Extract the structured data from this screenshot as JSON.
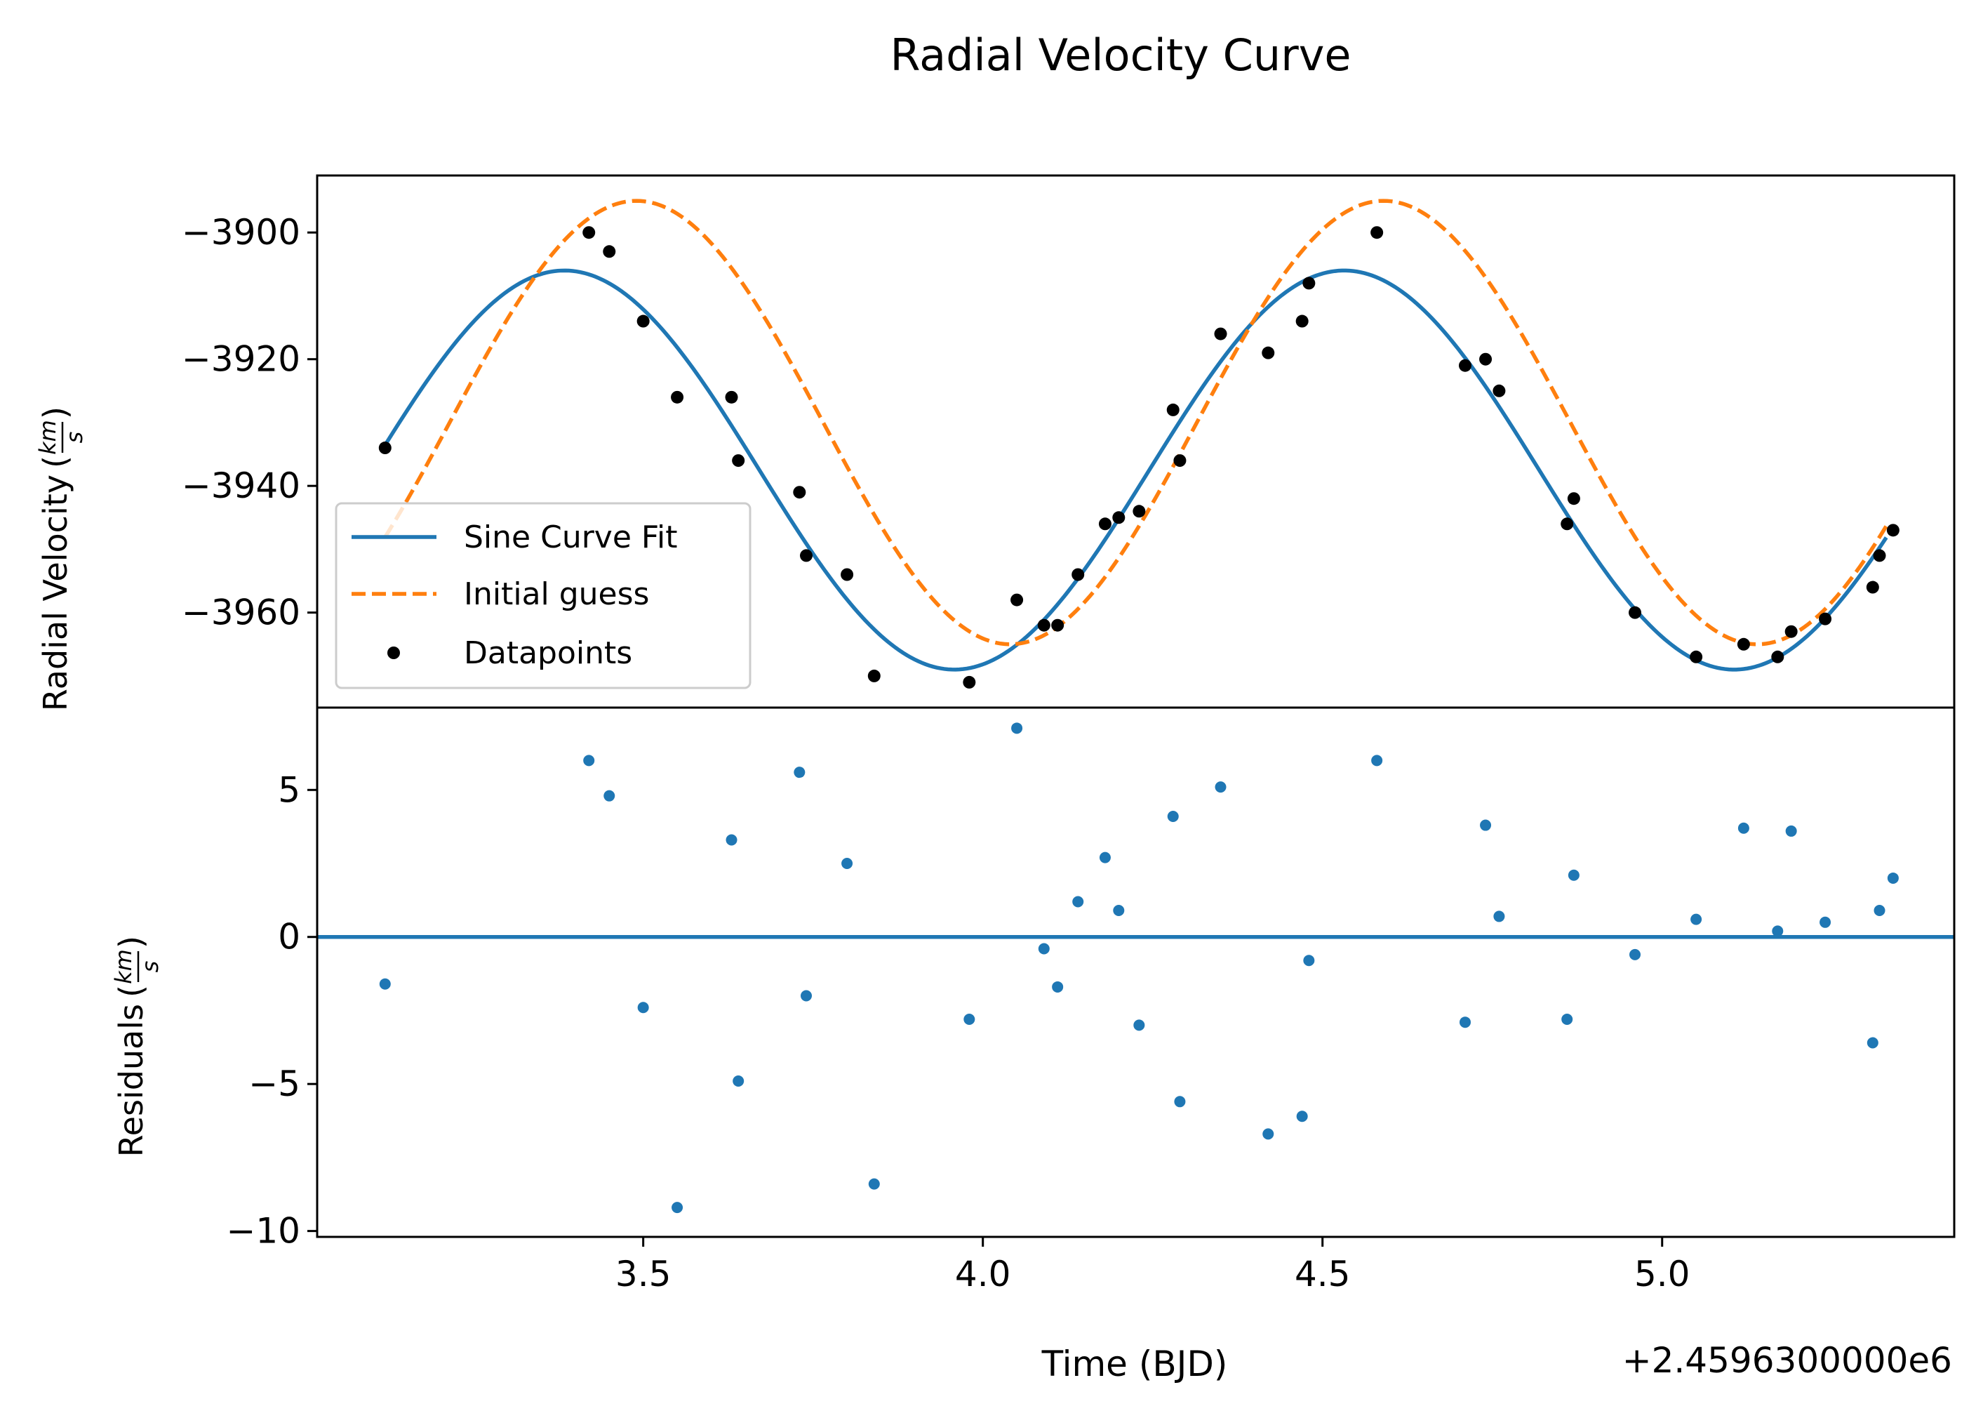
{
  "chart_data": {
    "title": "Radial Velocity Curve",
    "xlabel": "Time (BJD)",
    "x_offset_label": "+2.4596300000e6",
    "x_offset": 2459630.0,
    "xlim": [
      3.02,
      5.43
    ],
    "xticks": [
      3.5,
      4.0,
      4.5,
      5.0
    ],
    "xtick_labels": [
      "3.5",
      "4.0",
      "4.5",
      "5.0"
    ],
    "panels": [
      {
        "type": "line+scatter",
        "ylabel": "Radial Velocity",
        "yunit": {
          "num": "km",
          "den": "s"
        },
        "ylim": [
          -3975,
          -3891
        ],
        "yticks": [
          -3900,
          -3920,
          -3940,
          -3960
        ],
        "ytick_labels": [
          "−3900",
          "−3920",
          "−3940",
          "−3960"
        ],
        "legend": {
          "position": "lower left",
          "entries": [
            {
              "label": "Sine Curve Fit",
              "kind": "line",
              "color": "#1f77b4",
              "dash": "solid"
            },
            {
              "label": "Initial guess",
              "kind": "line",
              "color": "#ff7f0e",
              "dash": "dashed"
            },
            {
              "label": "Datapoints",
              "kind": "marker",
              "color": "#000000"
            }
          ]
        },
        "series": [
          {
            "name": "Sine Curve Fit",
            "kind": "line",
            "color": "#1f77b4",
            "dash": "solid",
            "model": {
              "mean": -3937.5,
              "amplitude": 31.5,
              "period": 1.148,
              "peak_time": 3.384
            },
            "x_range": [
              3.12,
              5.33
            ]
          },
          {
            "name": "Initial guess",
            "kind": "line",
            "color": "#ff7f0e",
            "dash": "dashed",
            "model": {
              "mean": -3930,
              "amplitude": 35,
              "period": 1.1,
              "peak_time": 3.49
            },
            "x_range": [
              3.12,
              5.33
            ]
          },
          {
            "name": "Datapoints",
            "kind": "scatter",
            "color": "#000000",
            "points": [
              [
                3.12,
                -3934
              ],
              [
                3.42,
                -3900
              ],
              [
                3.45,
                -3903
              ],
              [
                3.5,
                -3914
              ],
              [
                3.55,
                -3926
              ],
              [
                3.63,
                -3926
              ],
              [
                3.64,
                -3936
              ],
              [
                3.73,
                -3941
              ],
              [
                3.74,
                -3951
              ],
              [
                3.8,
                -3954
              ],
              [
                3.84,
                -3970
              ],
              [
                3.98,
                -3971
              ],
              [
                4.05,
                -3958
              ],
              [
                4.09,
                -3962
              ],
              [
                4.11,
                -3962
              ],
              [
                4.14,
                -3954
              ],
              [
                4.18,
                -3946
              ],
              [
                4.2,
                -3945
              ],
              [
                4.23,
                -3944
              ],
              [
                4.28,
                -3928
              ],
              [
                4.29,
                -3936
              ],
              [
                4.35,
                -3916
              ],
              [
                4.42,
                -3919
              ],
              [
                4.47,
                -3914
              ],
              [
                4.48,
                -3908
              ],
              [
                4.58,
                -3900
              ],
              [
                4.71,
                -3921
              ],
              [
                4.74,
                -3920
              ],
              [
                4.76,
                -3925
              ],
              [
                4.86,
                -3946
              ],
              [
                4.87,
                -3942
              ],
              [
                4.96,
                -3960
              ],
              [
                5.05,
                -3967
              ],
              [
                5.12,
                -3965
              ],
              [
                5.17,
                -3967
              ],
              [
                5.19,
                -3963
              ],
              [
                5.24,
                -3961
              ],
              [
                5.31,
                -3956
              ],
              [
                5.32,
                -3951
              ],
              [
                5.34,
                -3947
              ]
            ]
          }
        ]
      },
      {
        "type": "scatter",
        "ylabel": "Residuals",
        "yunit": {
          "num": "km",
          "den": "s"
        },
        "ylim": [
          -10.2,
          7.8
        ],
        "yticks": [
          5,
          0,
          -5,
          -10
        ],
        "ytick_labels": [
          "5",
          "0",
          "−5",
          "−10"
        ],
        "series": [
          {
            "name": "Residuals",
            "kind": "scatter",
            "color": "#1f77b4",
            "points": [
              [
                3.12,
                -1.6
              ],
              [
                3.42,
                6.0
              ],
              [
                3.45,
                4.8
              ],
              [
                3.5,
                -2.4
              ],
              [
                3.55,
                -9.2
              ],
              [
                3.63,
                3.3
              ],
              [
                3.64,
                -4.9
              ],
              [
                3.73,
                5.6
              ],
              [
                3.74,
                -2.0
              ],
              [
                3.8,
                2.5
              ],
              [
                3.84,
                -8.4
              ],
              [
                3.98,
                -2.8
              ],
              [
                4.05,
                7.1
              ],
              [
                4.09,
                -0.4
              ],
              [
                4.11,
                -1.7
              ],
              [
                4.14,
                1.2
              ],
              [
                4.18,
                2.7
              ],
              [
                4.2,
                0.9
              ],
              [
                4.23,
                -3.0
              ],
              [
                4.28,
                4.1
              ],
              [
                4.29,
                -5.6
              ],
              [
                4.35,
                5.1
              ],
              [
                4.42,
                -6.7
              ],
              [
                4.47,
                -6.1
              ],
              [
                4.48,
                -0.8
              ],
              [
                4.58,
                6.0
              ],
              [
                4.71,
                -2.9
              ],
              [
                4.74,
                3.8
              ],
              [
                4.76,
                0.7
              ],
              [
                4.86,
                -2.8
              ],
              [
                4.87,
                2.1
              ],
              [
                4.96,
                -0.6
              ],
              [
                5.05,
                0.6
              ],
              [
                5.12,
                3.7
              ],
              [
                5.17,
                0.2
              ],
              [
                5.19,
                3.6
              ],
              [
                5.24,
                0.5
              ],
              [
                5.31,
                -3.6
              ],
              [
                5.32,
                0.9
              ],
              [
                5.34,
                2.0
              ]
            ]
          }
        ],
        "reference_line": {
          "y": 0,
          "color": "#1f77b4"
        }
      }
    ]
  }
}
